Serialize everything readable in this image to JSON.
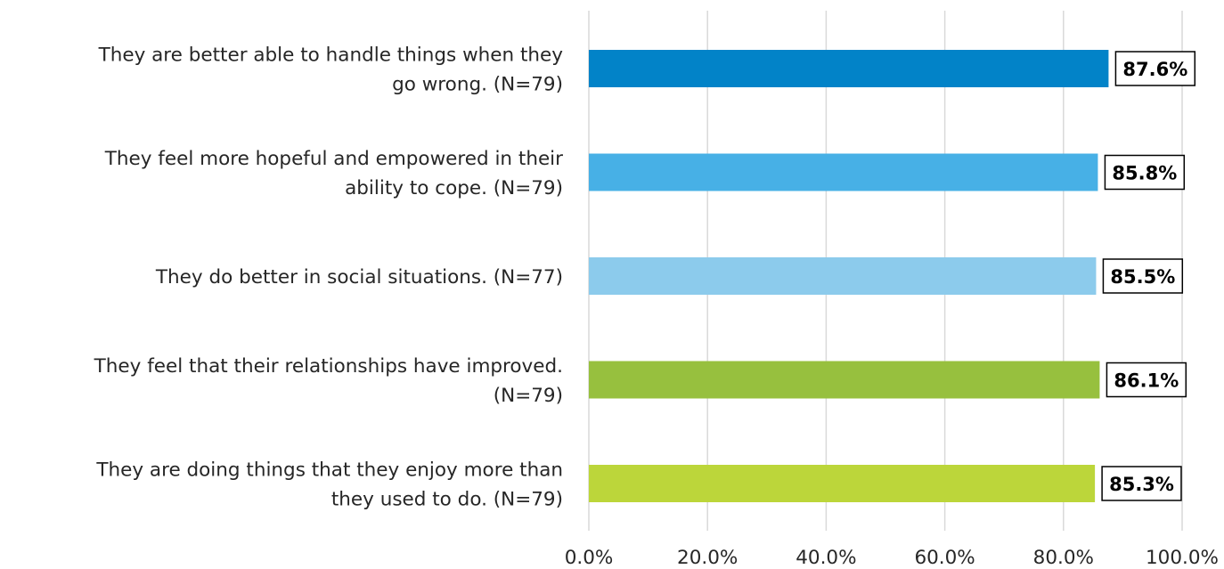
{
  "chart_data": {
    "type": "bar",
    "orientation": "horizontal",
    "categories": [
      [
        "They are better able to handle things when they",
        "go wrong. (N=79)"
      ],
      [
        "They feel more hopeful and empowered in their",
        "ability to cope. (N=79)"
      ],
      [
        "They do better in social situations. (N=77)"
      ],
      [
        "They feel that their relationships have improved.",
        "(N=79)"
      ],
      [
        "They are doing things that they enjoy more than",
        "they used to do. (N=79)"
      ]
    ],
    "values": [
      87.6,
      85.8,
      85.5,
      86.1,
      85.3
    ],
    "data_labels": [
      "87.6%",
      "85.8%",
      "85.5%",
      "86.1%",
      "85.3%"
    ],
    "colors": [
      "#0283c8",
      "#47b0e6",
      "#8ccbec",
      "#97c03e",
      "#bcd63a"
    ],
    "xlim": [
      0,
      100
    ],
    "ticks": [
      0,
      20,
      40,
      60,
      80,
      100
    ],
    "tick_labels": [
      "0.0%",
      "20.0%",
      "40.0%",
      "60.0%",
      "80.0%",
      "100.0%"
    ],
    "grid": true,
    "legend": false,
    "title": "",
    "xlabel": "",
    "ylabel": ""
  }
}
